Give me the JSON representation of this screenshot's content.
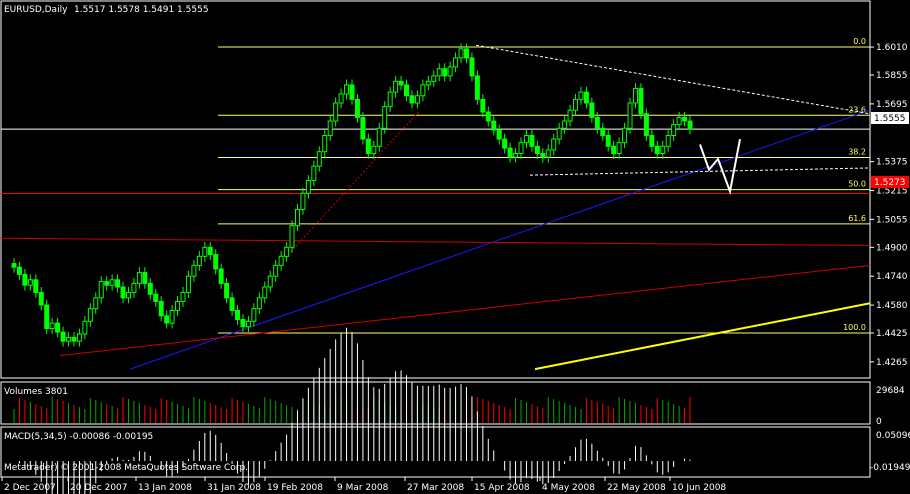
{
  "window": {
    "symbol_caption": "EURUSD,Daily",
    "ohlc_caption": "1.5517 1.5578 1.5491 1.5555",
    "current_price_badge": "1.5555",
    "line_price_badge": "1.5273",
    "volume_caption": "Volumes 3801",
    "macd_caption": "MACD(5,34,5) -0.00086 -0.00195",
    "copyright": "Metatrader) © 2001-2008 MetaQuotes Software Corp."
  },
  "colors": {
    "background": "#000000",
    "bull_candle": "#00ff00",
    "bear_candle": "#00ff00",
    "volume_up": "#00aa00",
    "volume_down": "#ff0000",
    "fibonacci": "#ffff66",
    "trend_blue": "#1a1aff",
    "trend_red": "#cc0000",
    "support_yellow": "#ffff00",
    "annotation_white": "#ffffff",
    "grid": "#ffffff"
  },
  "chart_data": [
    {
      "type": "candlestick",
      "title": "EURUSD,Daily",
      "y_ticks": [
        "1.6010",
        "1.5855",
        "1.5695",
        "1.5375",
        "1.5215",
        "1.5055",
        "1.4900",
        "1.4740",
        "1.4580",
        "1.4425",
        "1.4265"
      ],
      "ylim": [
        1.422,
        1.616
      ],
      "x_ticks": [
        "2 Dec 2007",
        "20 Dec 2007",
        "13 Jan 2008",
        "31 Jan 2008",
        "19 Feb 2008",
        "9 Mar 2008",
        "27 Mar 2008",
        "15 Apr 2008",
        "4 May 2008",
        "22 May 2008",
        "10 Jun 2008"
      ],
      "fibonacci": [
        {
          "label": "0.0",
          "price": 1.601
        },
        {
          "label": "23.6",
          "price": 1.5632
        },
        {
          "label": "38.2",
          "price": 1.5398
        },
        {
          "label": "50.0",
          "price": 1.522
        },
        {
          "label": "61.6",
          "price": 1.503
        },
        {
          "label": "100.0",
          "price": 1.4425
        }
      ],
      "horizontal_lines": [
        {
          "name": "current-price",
          "price": 1.5555,
          "color": "#ffffff"
        },
        {
          "name": "red-level",
          "price": 1.5198,
          "color": "#ff0000"
        }
      ],
      "close_series": [
        1.479,
        1.475,
        1.469,
        1.472,
        1.465,
        1.458,
        1.445,
        1.448,
        1.443,
        1.438,
        1.44,
        1.438,
        1.442,
        1.449,
        1.456,
        1.462,
        1.471,
        1.469,
        1.472,
        1.468,
        1.462,
        1.465,
        1.47,
        1.476,
        1.47,
        1.464,
        1.46,
        1.452,
        1.448,
        1.455,
        1.46,
        1.465,
        1.474,
        1.48,
        1.485,
        1.49,
        1.486,
        1.478,
        1.47,
        1.462,
        1.455,
        1.45,
        1.446,
        1.449,
        1.456,
        1.462,
        1.468,
        1.474,
        1.48,
        1.485,
        1.49,
        1.502,
        1.511,
        1.52,
        1.527,
        1.535,
        1.543,
        1.552,
        1.56,
        1.57,
        1.575,
        1.58,
        1.572,
        1.562,
        1.55,
        1.542,
        1.546,
        1.556,
        1.568,
        1.576,
        1.582,
        1.58,
        1.574,
        1.57,
        1.574,
        1.58,
        1.582,
        1.585,
        1.589,
        1.585,
        1.59,
        1.595,
        1.6,
        1.595,
        1.585,
        1.572,
        1.565,
        1.56,
        1.555,
        1.55,
        1.545,
        1.54,
        1.542,
        1.548,
        1.552,
        1.546,
        1.542,
        1.54,
        1.544,
        1.55,
        1.556,
        1.56,
        1.566,
        1.572,
        1.576,
        1.57,
        1.562,
        1.556,
        1.552,
        1.546,
        1.542,
        1.548,
        1.556,
        1.57,
        1.578,
        1.564,
        1.552,
        1.546,
        1.542,
        1.546,
        1.552,
        1.558,
        1.562,
        1.56,
        1.5555
      ]
    },
    {
      "type": "bar",
      "title": "Volumes 3801",
      "y_ticks": [
        "29684",
        "0"
      ]
    },
    {
      "type": "histogram",
      "title": "MACD(5,34,5) -0.00086 -0.00195",
      "y_ticks": [
        "0.05096",
        "-0.01949"
      ]
    }
  ]
}
